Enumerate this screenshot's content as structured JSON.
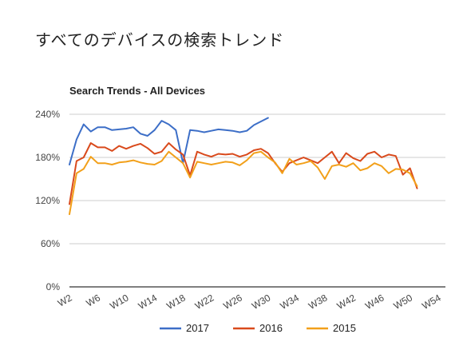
{
  "page": {
    "heading": "すべてのデバイスの検索トレンド"
  },
  "chart_data": {
    "type": "line",
    "title": "Search Trends - All Devices",
    "xlabel": "",
    "ylabel": "",
    "ylim": [
      0,
      240
    ],
    "y_ticks": [
      0,
      60,
      120,
      180,
      240
    ],
    "y_tick_labels": [
      "0%",
      "60%",
      "120%",
      "180%",
      "240%"
    ],
    "x_tick_labels": [
      "W2",
      "W6",
      "W10",
      "W14",
      "W18",
      "W22",
      "W26",
      "W30",
      "W34",
      "W38",
      "W42",
      "W46",
      "W50",
      "W54"
    ],
    "grid": true,
    "legend_position": "bottom",
    "series": [
      {
        "name": "2017",
        "color": "#3c6ec7",
        "x": [
          1,
          2,
          3,
          4,
          5,
          6,
          7,
          8,
          9,
          10,
          11,
          12,
          13,
          14,
          15,
          16,
          17,
          18,
          19,
          20,
          21,
          22,
          23,
          24,
          25,
          26,
          27,
          28,
          29,
          30,
          31
        ],
        "values": [
          170,
          205,
          226,
          216,
          222,
          222,
          218,
          219,
          220,
          222,
          213,
          210,
          218,
          231,
          226,
          218,
          172,
          218,
          217,
          215,
          217,
          219,
          218,
          217,
          215,
          217,
          225,
          230,
          235,
          null,
          null
        ]
      },
      {
        "name": "2016",
        "color": "#d94a1c",
        "x": [
          1,
          2,
          3,
          4,
          5,
          6,
          7,
          8,
          9,
          10,
          11,
          12,
          13,
          14,
          15,
          16,
          17,
          18,
          19,
          20,
          21,
          22,
          23,
          24,
          25,
          26,
          27,
          28,
          29,
          30,
          31,
          32,
          33,
          34,
          35,
          36,
          37,
          38,
          39,
          40,
          41,
          42,
          43,
          44,
          45,
          46,
          47,
          48,
          49,
          50,
          51,
          52,
          53,
          54
        ],
        "values": [
          115,
          175,
          180,
          200,
          194,
          194,
          189,
          196,
          192,
          196,
          199,
          193,
          185,
          188,
          200,
          191,
          184,
          155,
          188,
          184,
          181,
          185,
          184,
          185,
          181,
          184,
          190,
          192,
          186,
          172,
          160,
          172,
          176,
          180,
          176,
          172,
          180,
          188,
          172,
          186,
          179,
          175,
          185,
          188,
          180,
          184,
          182,
          156,
          165,
          137,
          null,
          null,
          null,
          null
        ]
      },
      {
        "name": "2015",
        "color": "#f2a01a",
        "x": [
          1,
          2,
          3,
          4,
          5,
          6,
          7,
          8,
          9,
          10,
          11,
          12,
          13,
          14,
          15,
          16,
          17,
          18,
          19,
          20,
          21,
          22,
          23,
          24,
          25,
          26,
          27,
          28,
          29,
          30,
          31,
          32,
          33,
          34,
          35,
          36,
          37,
          38,
          39,
          40,
          41,
          42,
          43,
          44,
          45,
          46,
          47,
          48,
          49,
          50,
          51,
          52,
          53,
          54
        ],
        "values": [
          101,
          158,
          164,
          181,
          172,
          172,
          170,
          173,
          174,
          176,
          173,
          171,
          170,
          175,
          188,
          180,
          172,
          152,
          174,
          172,
          170,
          172,
          174,
          173,
          169,
          176,
          186,
          188,
          180,
          173,
          158,
          178,
          170,
          172,
          175,
          166,
          150,
          168,
          170,
          167,
          172,
          162,
          165,
          172,
          168,
          158,
          164,
          163,
          158,
          140,
          null,
          null,
          null,
          null
        ]
      }
    ]
  }
}
